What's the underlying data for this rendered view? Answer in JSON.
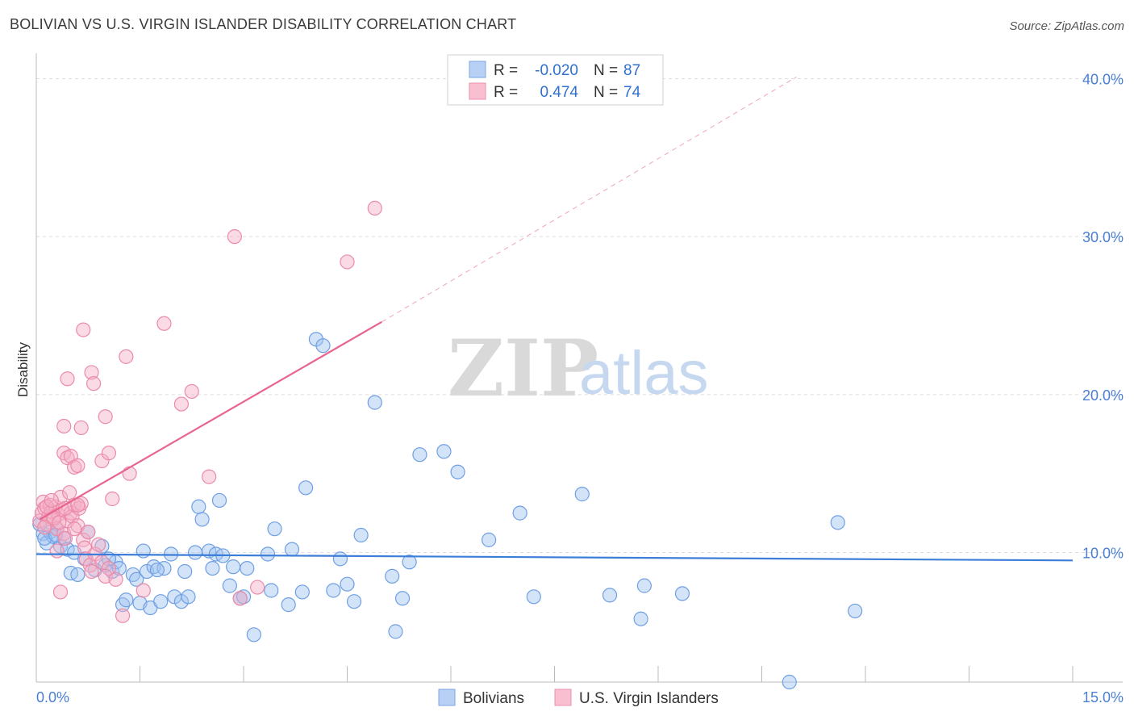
{
  "title": "BOLIVIAN VS U.S. VIRGIN ISLANDER DISABILITY CORRELATION CHART",
  "source": "Source: ZipAtlas.com",
  "watermark": {
    "zip": "ZIP",
    "atlas": "atlas"
  },
  "colors": {
    "blue": "#3b7dd8",
    "blue_fill": "#b8d0f4",
    "pink": "#e8648f",
    "pink_fill": "#f7bfd0",
    "grid": "#dddddd",
    "tick_text": "#4a7fd4"
  },
  "legend": {
    "rows": [
      {
        "r_label": "R =",
        "r_value": "-0.020",
        "n_label": "N =",
        "n_value": "87",
        "series": "blue"
      },
      {
        "r_label": "R =",
        "r_value": "0.474",
        "n_label": "N =",
        "n_value": "74",
        "series": "pink"
      }
    ]
  },
  "bottom_legend": [
    {
      "label": "Bolivians",
      "series": "blue"
    },
    {
      "label": "U.S. Virgin Islanders",
      "series": "pink"
    }
  ],
  "chart_data": {
    "type": "scatter",
    "title": "BOLIVIAN VS U.S. VIRGIN ISLANDER DISABILITY CORRELATION CHART",
    "xlabel": "",
    "ylabel": "Disability",
    "xlim": [
      0,
      15
    ],
    "ylim": [
      1.8,
      41.3
    ],
    "x_tick_labels": [
      {
        "value": 0,
        "label": "0.0%"
      },
      {
        "value": 15,
        "label": "15.0%"
      }
    ],
    "x_minor_ticks": [
      1.5,
      3.0,
      4.5,
      6.0,
      7.5,
      9.0,
      10.5,
      12.0,
      13.5
    ],
    "y_ticks": [
      {
        "value": 10,
        "label": "10.0%"
      },
      {
        "value": 20,
        "label": "20.0%"
      },
      {
        "value": 30,
        "label": "30.0%"
      },
      {
        "value": 40,
        "label": "40.0%"
      }
    ],
    "grid": true,
    "legend_position": "top-center",
    "series": [
      {
        "name": "Bolivians",
        "color": "#3b7dd8",
        "trend": {
          "x": [
            0,
            15
          ],
          "y": [
            9.9,
            9.5
          ]
        },
        "points": [
          [
            0.1,
            11.2
          ],
          [
            0.15,
            10.6
          ],
          [
            0.2,
            11.3
          ],
          [
            0.25,
            11.0
          ],
          [
            0.3,
            11.5
          ],
          [
            0.35,
            10.4
          ],
          [
            0.4,
            10.9
          ],
          [
            0.45,
            10.2
          ],
          [
            0.5,
            8.7
          ],
          [
            0.6,
            8.6
          ],
          [
            0.7,
            9.6
          ],
          [
            0.75,
            11.3
          ],
          [
            0.85,
            8.9
          ],
          [
            0.95,
            10.4
          ],
          [
            1.0,
            9.2
          ],
          [
            1.1,
            8.8
          ],
          [
            1.15,
            9.4
          ],
          [
            1.2,
            9.0
          ],
          [
            1.25,
            6.7
          ],
          [
            1.3,
            7.0
          ],
          [
            1.4,
            8.6
          ],
          [
            1.45,
            8.3
          ],
          [
            1.5,
            6.8
          ],
          [
            1.55,
            10.1
          ],
          [
            1.6,
            8.8
          ],
          [
            1.65,
            6.5
          ],
          [
            1.7,
            9.1
          ],
          [
            1.8,
            6.9
          ],
          [
            1.85,
            9.0
          ],
          [
            1.95,
            9.9
          ],
          [
            2.0,
            7.2
          ],
          [
            2.1,
            6.9
          ],
          [
            2.15,
            8.8
          ],
          [
            2.2,
            7.2
          ],
          [
            2.3,
            10.0
          ],
          [
            2.35,
            12.9
          ],
          [
            2.4,
            12.1
          ],
          [
            2.5,
            10.1
          ],
          [
            2.55,
            9.0
          ],
          [
            2.6,
            9.9
          ],
          [
            2.65,
            13.3
          ],
          [
            2.7,
            9.8
          ],
          [
            2.85,
            9.1
          ],
          [
            2.8,
            7.9
          ],
          [
            2.95,
            7.1
          ],
          [
            3.0,
            7.2
          ],
          [
            3.05,
            9.0
          ],
          [
            3.15,
            4.8
          ],
          [
            3.35,
            9.9
          ],
          [
            3.4,
            7.6
          ],
          [
            3.45,
            11.5
          ],
          [
            3.65,
            6.7
          ],
          [
            3.7,
            10.2
          ],
          [
            3.85,
            7.5
          ],
          [
            3.9,
            14.1
          ],
          [
            4.05,
            23.5
          ],
          [
            4.15,
            23.1
          ],
          [
            4.3,
            7.6
          ],
          [
            4.4,
            9.6
          ],
          [
            4.5,
            8.0
          ],
          [
            4.6,
            6.9
          ],
          [
            4.7,
            11.1
          ],
          [
            4.9,
            19.5
          ],
          [
            5.15,
            8.5
          ],
          [
            5.2,
            5.0
          ],
          [
            5.3,
            7.1
          ],
          [
            5.4,
            9.4
          ],
          [
            5.55,
            16.2
          ],
          [
            5.9,
            16.4
          ],
          [
            6.1,
            15.1
          ],
          [
            6.55,
            10.8
          ],
          [
            7.0,
            12.5
          ],
          [
            7.2,
            7.2
          ],
          [
            7.9,
            13.7
          ],
          [
            8.3,
            7.3
          ],
          [
            8.75,
            5.8
          ],
          [
            8.8,
            7.9
          ],
          [
            9.35,
            7.4
          ],
          [
            10.9,
            1.8
          ],
          [
            11.6,
            11.9
          ],
          [
            11.85,
            6.3
          ],
          [
            0.05,
            11.8
          ],
          [
            0.12,
            10.9
          ],
          [
            0.28,
            11.1
          ],
          [
            0.55,
            10.0
          ],
          [
            1.05,
            9.6
          ],
          [
            1.75,
            8.9
          ]
        ]
      },
      {
        "name": "U.S. Virgin Islanders",
        "color": "#e8648f",
        "trend": {
          "x": [
            0.05,
            5.0
          ],
          "y": [
            12.1,
            24.6
          ]
        },
        "trend_extended": {
          "x": [
            5.0,
            11.0
          ],
          "y": [
            24.6,
            40.1
          ]
        },
        "points": [
          [
            0.05,
            12.0
          ],
          [
            0.08,
            12.5
          ],
          [
            0.1,
            13.2
          ],
          [
            0.12,
            12.8
          ],
          [
            0.15,
            11.8
          ],
          [
            0.18,
            12.3
          ],
          [
            0.2,
            13.0
          ],
          [
            0.22,
            12.6
          ],
          [
            0.25,
            12.1
          ],
          [
            0.28,
            12.9
          ],
          [
            0.3,
            11.5
          ],
          [
            0.32,
            12.4
          ],
          [
            0.35,
            13.5
          ],
          [
            0.38,
            12.7
          ],
          [
            0.4,
            11.2
          ],
          [
            0.42,
            10.9
          ],
          [
            0.45,
            12.0
          ],
          [
            0.48,
            13.8
          ],
          [
            0.5,
            12.5
          ],
          [
            0.52,
            12.3
          ],
          [
            0.55,
            13.0
          ],
          [
            0.6,
            11.7
          ],
          [
            0.62,
            12.8
          ],
          [
            0.65,
            13.1
          ],
          [
            0.68,
            10.8
          ],
          [
            0.7,
            10.3
          ],
          [
            0.72,
            9.6
          ],
          [
            0.75,
            11.3
          ],
          [
            0.78,
            9.2
          ],
          [
            0.8,
            8.8
          ],
          [
            0.85,
            9.9
          ],
          [
            0.9,
            10.5
          ],
          [
            0.95,
            9.4
          ],
          [
            0.3,
            10.1
          ],
          [
            0.35,
            7.5
          ],
          [
            0.4,
            16.3
          ],
          [
            0.45,
            16.0
          ],
          [
            0.5,
            16.1
          ],
          [
            0.55,
            15.4
          ],
          [
            0.6,
            15.5
          ],
          [
            0.65,
            17.9
          ],
          [
            0.4,
            18.0
          ],
          [
            0.45,
            21.0
          ],
          [
            0.8,
            21.4
          ],
          [
            0.83,
            20.7
          ],
          [
            0.95,
            15.8
          ],
          [
            1.05,
            16.3
          ],
          [
            1.1,
            13.4
          ],
          [
            1.05,
            9.0
          ],
          [
            1.0,
            8.5
          ],
          [
            1.3,
            22.4
          ],
          [
            1.35,
            15.0
          ],
          [
            1.55,
            7.6
          ],
          [
            1.85,
            24.5
          ],
          [
            2.25,
            20.2
          ],
          [
            2.1,
            19.4
          ],
          [
            2.5,
            14.8
          ],
          [
            2.87,
            30.0
          ],
          [
            3.2,
            7.8
          ],
          [
            2.95,
            7.1
          ],
          [
            4.5,
            28.4
          ],
          [
            4.9,
            31.8
          ],
          [
            0.68,
            24.1
          ],
          [
            1.0,
            18.6
          ],
          [
            1.25,
            6.0
          ],
          [
            1.15,
            8.3
          ],
          [
            0.55,
            11.5
          ],
          [
            0.25,
            12.2
          ],
          [
            0.15,
            12.9
          ],
          [
            0.12,
            11.6
          ],
          [
            0.22,
            13.3
          ],
          [
            0.33,
            11.9
          ],
          [
            0.42,
            12.8
          ],
          [
            0.6,
            13.0
          ]
        ]
      }
    ]
  }
}
